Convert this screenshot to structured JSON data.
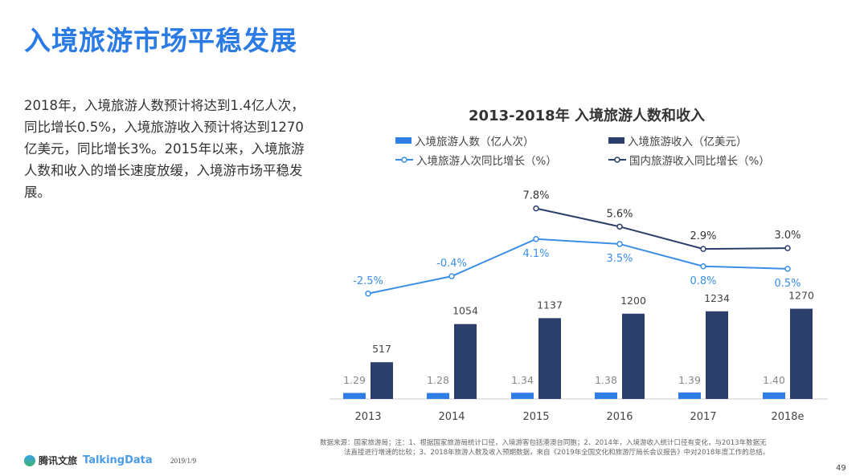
{
  "header": {
    "title": "入境旅游市场平稳发展"
  },
  "description": "2018年，入境旅游人数预计将达到1.4亿人次，同比增长0.5%，入境旅游收入预计将达到1270亿美元，同比增长3%。2015年以来，入境旅游人数和收入的增长速度放缓，入境游市场平稳发展。",
  "chart_data": {
    "type": "bar+line",
    "title": "2013-2018年 入境旅游人数和收入",
    "categories": [
      "2013",
      "2014",
      "2015",
      "2016",
      "2017",
      "2018e"
    ],
    "legend_placement": "top",
    "grid": false,
    "series": [
      {
        "name": "入境旅游人数（亿人次）",
        "type": "bar",
        "color": "#2f7ee6",
        "values": [
          1.29,
          1.28,
          1.34,
          1.38,
          1.39,
          1.4
        ],
        "labels": [
          "1.29",
          "1.28",
          "1.34",
          "1.38",
          "1.39",
          "1.40"
        ]
      },
      {
        "name": "入境旅游收入（亿美元）",
        "type": "bar",
        "color": "#2c3e6b",
        "values": [
          517,
          1054,
          1137,
          1200,
          1234,
          1270
        ],
        "labels": [
          "517",
          "1054",
          "1137",
          "1200",
          "1234",
          "1270"
        ]
      },
      {
        "name": "入境旅游人次同比增长（%）",
        "type": "line",
        "color": "#3a8ee6",
        "values": [
          -2.5,
          -0.4,
          4.1,
          3.5,
          0.8,
          0.5
        ],
        "labels": [
          "-2.5%",
          "-0.4%",
          "4.1%",
          "3.5%",
          "0.8%",
          "0.5%"
        ]
      },
      {
        "name": "国内旅游收入同比增长（%）",
        "type": "line",
        "color": "#2c3e6b",
        "values": [
          null,
          null,
          7.8,
          5.6,
          2.9,
          3.0
        ],
        "labels": [
          "",
          "",
          "7.8%",
          "5.6%",
          "2.9%",
          "3.0%"
        ]
      }
    ]
  },
  "footer": {
    "source_line1": "数据来源：国家旅游局；注：1、根据国家旅游局统计口径，入境游客包括港澳台同胞；2、2014年，入境游收入统计口径有变化，与2013年数据无",
    "source_line2": "法直接进行增速的比较；3、2018年旅游人数及收入预期数据，来自《2019年全国文化和旅游厅局长会议报告》中对2018年度工作的总结。",
    "page": "49",
    "logo1": "腾讯文旅",
    "logo2": "TalkingData",
    "date": "2019/1/9"
  }
}
